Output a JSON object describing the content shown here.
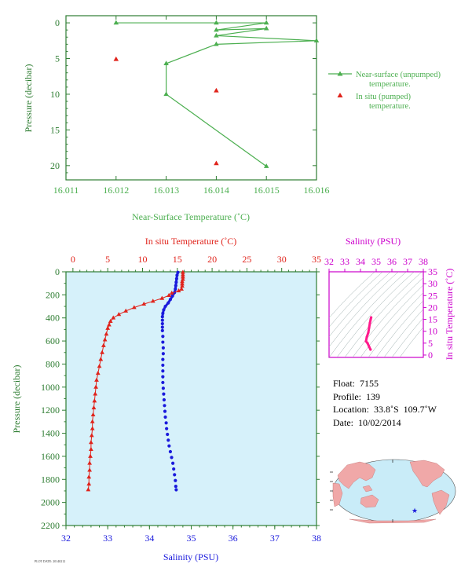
{
  "colors": {
    "axis_green": "#2e7d32",
    "near_surface_green": "#4caf50",
    "insitu_red": "#e0231b",
    "salinity_blue": "#1a1adc",
    "ts_magenta": "#cc00cc",
    "ts_curve_pink": "#ff1a8c",
    "panel_bg": "#d6f1fa",
    "ocean_blue": "#c9ecf8",
    "land_pink": "#f0a8a8"
  },
  "chart_data": [
    {
      "type": "line",
      "xlabel": "Near-Surface Temperature (˚C)",
      "ylabel": "Pressure (decibar)",
      "xlim": [
        16.011,
        16.016
      ],
      "ylim": [
        22,
        -1
      ],
      "x_ticks": [
        "16.011",
        "16.012",
        "16.013",
        "16.014",
        "16.015",
        "16.016"
      ],
      "y_ticks": [
        "0",
        "5",
        "10",
        "15",
        "20"
      ],
      "legend_position": "right",
      "series": [
        {
          "name": "Near-surface (unpumped) temperature.",
          "marker": "triangle",
          "points": [
            [
              16.012,
              0
            ],
            [
              16.014,
              0
            ],
            [
              16.015,
              0
            ],
            [
              16.014,
              1.0
            ],
            [
              16.015,
              0.8
            ],
            [
              16.014,
              1.8
            ],
            [
              16.016,
              2.5
            ],
            [
              16.014,
              3.0
            ],
            [
              16.013,
              5.7
            ],
            [
              16.013,
              10
            ],
            [
              16.015,
              20.1
            ]
          ]
        },
        {
          "name": "In situ (pumped) temperature.",
          "marker": "triangle",
          "points": [
            [
              16.012,
              5.1
            ],
            [
              16.014,
              9.5
            ],
            [
              16.014,
              19.7
            ]
          ]
        }
      ],
      "legend": {
        "near_surface_line1": "Near-surface (unpumped)",
        "near_surface_line2": "temperature.",
        "insitu_line1": "In situ (pumped)",
        "insitu_line2": "temperature."
      }
    },
    {
      "type": "line",
      "title": "In situ Temperature (˚C)",
      "xlabel": "Salinity (PSU)",
      "ylabel": "Pressure (decibar)",
      "top_axis": {
        "label": "In situ Temperature (˚C)",
        "lim": [
          -1,
          35
        ],
        "ticks": [
          "0",
          "5",
          "10",
          "15",
          "20",
          "25",
          "30",
          "35"
        ]
      },
      "bottom_axis": {
        "label": "Salinity (PSU)",
        "lim": [
          32,
          38
        ],
        "ticks": [
          "32",
          "33",
          "34",
          "35",
          "36",
          "37",
          "38"
        ]
      },
      "ylim": [
        2200,
        0
      ],
      "y_ticks": [
        "0",
        "200",
        "400",
        "600",
        "800",
        "1000",
        "1200",
        "1400",
        "1600",
        "1800",
        "2000",
        "2200"
      ],
      "series": [
        {
          "name": "In situ Temperature (˚C)",
          "points": [
            [
              15.8,
              5
            ],
            [
              15.8,
              25
            ],
            [
              15.8,
              45
            ],
            [
              15.8,
              65
            ],
            [
              15.7,
              85
            ],
            [
              15.7,
              105
            ],
            [
              15.7,
              125
            ],
            [
              15.6,
              150
            ],
            [
              15.2,
              165
            ],
            [
              14.2,
              185
            ],
            [
              13.8,
              205
            ],
            [
              12.8,
              230
            ],
            [
              11.5,
              255
            ],
            [
              10.2,
              280
            ],
            [
              8.8,
              310
            ],
            [
              7.6,
              340
            ],
            [
              6.6,
              370
            ],
            [
              5.8,
              400
            ],
            [
              5.4,
              430
            ],
            [
              5.2,
              460
            ],
            [
              5.0,
              490
            ],
            [
              4.8,
              540
            ],
            [
              4.6,
              590
            ],
            [
              4.4,
              640
            ],
            [
              4.2,
              700
            ],
            [
              4.0,
              760
            ],
            [
              3.8,
              820
            ],
            [
              3.6,
              880
            ],
            [
              3.4,
              940
            ],
            [
              3.3,
              1000
            ],
            [
              3.2,
              1060
            ],
            [
              3.1,
              1120
            ],
            [
              3.0,
              1180
            ],
            [
              2.9,
              1240
            ],
            [
              2.8,
              1300
            ],
            [
              2.8,
              1360
            ],
            [
              2.7,
              1420
            ],
            [
              2.6,
              1480
            ],
            [
              2.6,
              1540
            ],
            [
              2.5,
              1600
            ],
            [
              2.4,
              1660
            ],
            [
              2.4,
              1720
            ],
            [
              2.3,
              1780
            ],
            [
              2.3,
              1840
            ],
            [
              2.2,
              1890
            ]
          ]
        },
        {
          "name": "Salinity (PSU)",
          "points": [
            [
              34.68,
              5
            ],
            [
              34.66,
              30
            ],
            [
              34.65,
              60
            ],
            [
              34.64,
              90
            ],
            [
              34.63,
              120
            ],
            [
              34.62,
              150
            ],
            [
              34.6,
              180
            ],
            [
              34.55,
              210
            ],
            [
              34.5,
              240
            ],
            [
              34.45,
              270
            ],
            [
              34.38,
              300
            ],
            [
              34.34,
              330
            ],
            [
              34.32,
              360
            ],
            [
              34.31,
              390
            ],
            [
              34.31,
              420
            ],
            [
              34.31,
              450
            ],
            [
              34.31,
              480
            ],
            [
              34.31,
              510
            ],
            [
              34.32,
              560
            ],
            [
              34.32,
              610
            ],
            [
              34.33,
              660
            ],
            [
              34.33,
              710
            ],
            [
              34.32,
              760
            ],
            [
              34.32,
              810
            ],
            [
              34.32,
              860
            ],
            [
              34.32,
              910
            ],
            [
              34.32,
              960
            ],
            [
              34.33,
              1010
            ],
            [
              34.34,
              1060
            ],
            [
              34.35,
              1110
            ],
            [
              34.36,
              1160
            ],
            [
              34.37,
              1210
            ],
            [
              34.38,
              1260
            ],
            [
              34.4,
              1310
            ],
            [
              34.41,
              1360
            ],
            [
              34.43,
              1410
            ],
            [
              34.45,
              1460
            ],
            [
              34.47,
              1510
            ],
            [
              34.5,
              1560
            ],
            [
              34.53,
              1610
            ],
            [
              34.56,
              1660
            ],
            [
              34.58,
              1710
            ],
            [
              34.6,
              1760
            ],
            [
              34.62,
              1810
            ],
            [
              34.63,
              1860
            ],
            [
              34.64,
              1890
            ]
          ]
        }
      ]
    },
    {
      "type": "line",
      "title": "Salinity (PSU)",
      "xlabel": "Salinity (PSU)",
      "ylabel": "In situ Temperature (˚C)",
      "xlim": [
        32,
        38
      ],
      "ylim": [
        -1,
        35
      ],
      "x_ticks": [
        "32",
        "33",
        "34",
        "35",
        "36",
        "37",
        "38"
      ],
      "y_ticks": [
        "0",
        "5",
        "10",
        "15",
        "20",
        "25",
        "30",
        "35"
      ],
      "series": [
        {
          "name": "T-S",
          "points": [
            [
              34.64,
              2.3
            ],
            [
              34.55,
              3.5
            ],
            [
              34.45,
              5.0
            ],
            [
              34.35,
              5.8
            ],
            [
              34.4,
              7.5
            ],
            [
              34.5,
              9.5
            ],
            [
              34.55,
              11.5
            ],
            [
              34.6,
              13.5
            ],
            [
              34.65,
              15.0
            ],
            [
              34.68,
              15.8
            ]
          ]
        }
      ]
    }
  ],
  "float_info": {
    "float": "Float:  7155",
    "profile": "Profile:  139",
    "location": "Location:  33.8˚S  109.7˚W",
    "date": "Date:  10/02/2014"
  },
  "map": {
    "marker_symbol": "★",
    "float_location": {
      "lat": -33.8,
      "lon": -109.7
    }
  },
  "footer_small_text": "PLOT DATE: 20140212"
}
